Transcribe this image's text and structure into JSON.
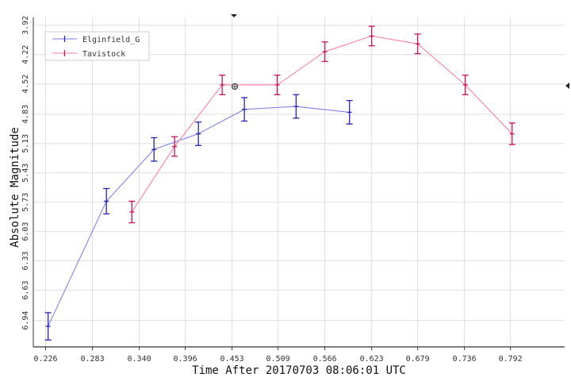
{
  "chart_data": {
    "type": "line",
    "title": "",
    "xlabel": "Time After 20170703 08:06:01 UTC",
    "ylabel": "Absolute Magnitude",
    "xlim": [
      0.211,
      0.858
    ],
    "ylim": [
      7.21,
      3.84
    ],
    "y_inverted": true,
    "grid": true,
    "legend_position": "top-left",
    "x_ticks": [
      "0.226",
      "0.283",
      "0.340",
      "0.396",
      "0.453",
      "0.509",
      "0.566",
      "0.623",
      "0.679",
      "0.736",
      "0.792"
    ],
    "y_ticks": [
      "3.92",
      "4.22",
      "4.52",
      "4.83",
      "5.13",
      "5.43",
      "5.73",
      "6.03",
      "6.33",
      "6.63",
      "6.94"
    ],
    "series": [
      {
        "name": "Elginfield_G",
        "color": "#7777ee",
        "marker_color": "#2222bb",
        "points": [
          {
            "x": 0.229,
            "y": 7.0,
            "err": 0.14
          },
          {
            "x": 0.3,
            "y": 5.72,
            "err": 0.13
          },
          {
            "x": 0.358,
            "y": 5.19,
            "err": 0.12
          },
          {
            "x": 0.412,
            "y": 5.03,
            "err": 0.12
          },
          {
            "x": 0.468,
            "y": 4.78,
            "err": 0.12
          },
          {
            "x": 0.531,
            "y": 4.75,
            "err": 0.12
          },
          {
            "x": 0.596,
            "y": 4.81,
            "err": 0.12
          }
        ]
      },
      {
        "name": "Tavistock",
        "color": "#ff7799",
        "marker_color": "#cc1155",
        "points": [
          {
            "x": 0.331,
            "y": 5.83,
            "err": 0.11
          },
          {
            "x": 0.383,
            "y": 5.16,
            "err": 0.1
          },
          {
            "x": 0.441,
            "y": 4.53,
            "err": 0.1
          },
          {
            "x": 0.508,
            "y": 4.53,
            "err": 0.1
          },
          {
            "x": 0.566,
            "y": 4.19,
            "err": 0.1
          },
          {
            "x": 0.623,
            "y": 4.03,
            "err": 0.1
          },
          {
            "x": 0.679,
            "y": 4.11,
            "err": 0.1
          },
          {
            "x": 0.737,
            "y": 4.53,
            "err": 0.1
          },
          {
            "x": 0.794,
            "y": 5.03,
            "err": 0.11
          }
        ]
      }
    ]
  }
}
